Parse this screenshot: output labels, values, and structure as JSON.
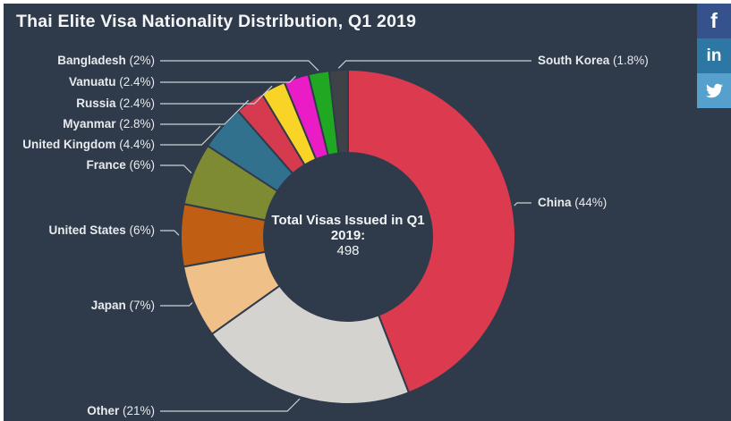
{
  "header": {
    "title": "Thai Elite Visa Nationality Distribution, Q1 2019"
  },
  "donut_center": {
    "line1": "Total Visas Issued in Q1 2019:",
    "line2": "498"
  },
  "social": {
    "facebook": {
      "label": "f",
      "color": "#36528c"
    },
    "linkedin": {
      "label": "in",
      "color": "#2d77a5"
    },
    "twitter": {
      "color": "#55a0cc"
    }
  },
  "colors": {
    "panel_background": "#2f3b4b",
    "label_text": "#e8eaec",
    "leader_line": "#ccd1d8",
    "title_text": "#f4f6f8"
  },
  "chart_data": {
    "type": "pie",
    "subtype": "donut",
    "title": "Thai Elite Visa Nationality Distribution, Q1 2019",
    "center_label": "Total Visas Issued in Q1 2019: 498",
    "total_visas": 498,
    "start_angle_deg": 0,
    "direction": "clockwise",
    "legend_position": "callout-labels",
    "slices": [
      {
        "label": "China",
        "value": 44,
        "display": "China (44%)",
        "color": "#dc3a4e"
      },
      {
        "label": "Other",
        "value": 21,
        "display": "Other (21%)",
        "color": "#d5d3d0"
      },
      {
        "label": "Japan",
        "value": 7,
        "display": "Japan (7%)",
        "color": "#efc189"
      },
      {
        "label": "United States",
        "value": 6,
        "display": "United States (6%)",
        "color": "#c05e14"
      },
      {
        "label": "France",
        "value": 6,
        "display": "France (6%)",
        "color": "#7e8b33"
      },
      {
        "label": "United Kingdom",
        "value": 4.4,
        "display": "United Kingdom (4.4%)",
        "color": "#31718e"
      },
      {
        "label": "Myanmar",
        "value": 2.8,
        "display": "Myanmar (2.8%)",
        "color": "#d63a4e"
      },
      {
        "label": "Russia",
        "value": 2.4,
        "display": "Russia (2.4%)",
        "color": "#f8d426"
      },
      {
        "label": "Vanuatu",
        "value": 2.4,
        "display": "Vanuatu (2.4%)",
        "color": "#e91cc6"
      },
      {
        "label": "Bangladesh",
        "value": 2,
        "display": "Bangladesh (2%)",
        "color": "#21a823"
      },
      {
        "label": "South Korea",
        "value": 1.8,
        "display": "South Korea (1.8%)",
        "color": "#3f4347"
      }
    ]
  }
}
